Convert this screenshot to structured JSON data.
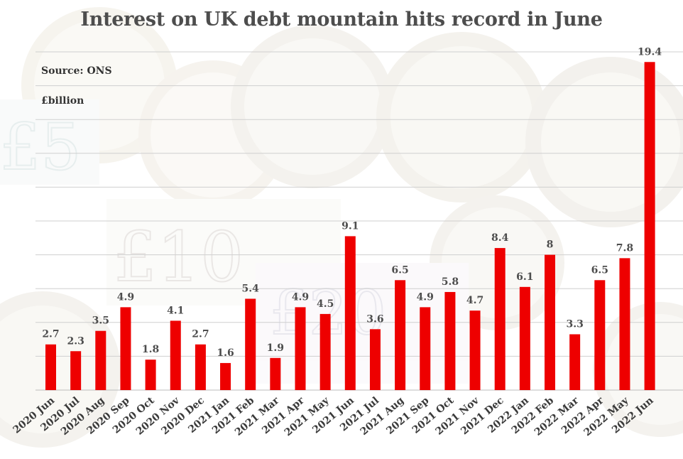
{
  "title": "Interest on UK debt mountain hits record in June",
  "source_note": "Source: ONS",
  "units_note": "£billion",
  "colors": {
    "bar": "#ee0000",
    "grid": "#cfcfcf",
    "title": "#4d4d4d"
  },
  "chart_data": {
    "type": "bar",
    "title": "Interest on UK debt mountain hits record in June",
    "xlabel": "",
    "ylabel": "£billion",
    "ylim": [
      0,
      20
    ],
    "grid": true,
    "categories": [
      "2020 Jun",
      "2020 Jul",
      "2020 Aug",
      "2020 Sep",
      "2020 Oct",
      "2020 Nov",
      "2020 Dec",
      "2021 Jan",
      "2021 Feb",
      "2021 Mar",
      "2021 Apr",
      "2021 May",
      "2021 Jun",
      "2021 Jul",
      "2021 Aug",
      "2021 Sep",
      "2021 Oct",
      "2021 Nov",
      "2021 Dec",
      "2022 Jan",
      "2022 Feb",
      "2022 Mar",
      "2022 Apr",
      "2022 May",
      "2022 Jun"
    ],
    "values": [
      2.7,
      2.3,
      3.5,
      4.9,
      1.8,
      4.1,
      2.7,
      1.6,
      5.4,
      1.9,
      4.9,
      4.5,
      9.1,
      3.6,
      6.5,
      4.9,
      5.8,
      4.7,
      8.4,
      6.1,
      8,
      3.3,
      6.5,
      7.8,
      19.4
    ],
    "value_labels": [
      "2.7",
      "2.3",
      "3.5",
      "4.9",
      "1.8",
      "4.1",
      "2.7",
      "1.6",
      "5.4",
      "1.9",
      "4.9",
      "4.5",
      "9.1",
      "3.6",
      "6.5",
      "4.9",
      "5.8",
      "4.7",
      "8.4",
      "6.1",
      "8",
      "3.3",
      "6.5",
      "7.8",
      "19.4"
    ]
  }
}
